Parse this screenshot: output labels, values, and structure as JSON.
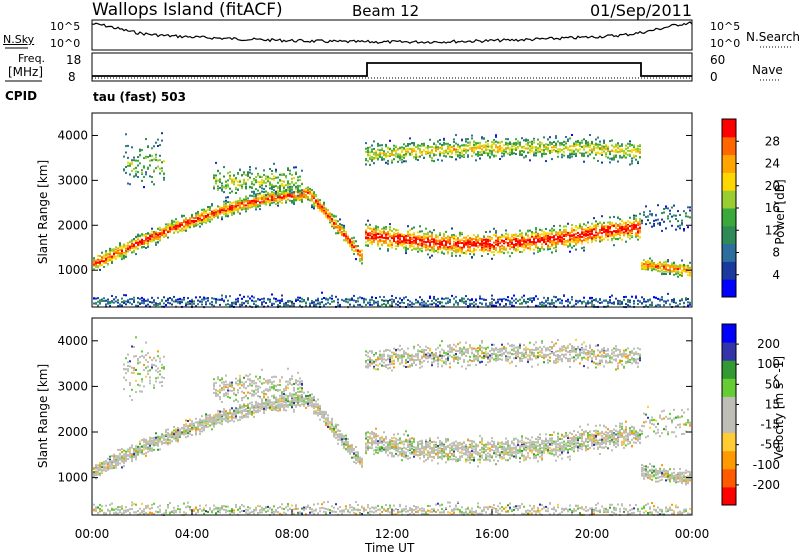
{
  "header": {
    "station": "Wallops Island (fitACF)",
    "beam": "Beam 12",
    "date": "01/Sep/2011"
  },
  "panels": {
    "nsky": {
      "label": "N.Sky",
      "ytop": "10^5",
      "ybot": "10^0",
      "right_top": "10^5",
      "right_bot": "10^0",
      "right_label": "N.Search"
    },
    "freq": {
      "label_line1": "Freq.",
      "label_line2": "[MHz]",
      "ytop": "18",
      "ybot": "8",
      "right_top": "60",
      "right_bot": "0",
      "right_label": "Nave"
    },
    "cpid": {
      "label": "CPID",
      "mode_text": "tau (fast) 503"
    }
  },
  "colors": {
    "power_scale": [
      "#0000ff",
      "#1a3aa0",
      "#2e6e9e",
      "#2e8b57",
      "#3aa83a",
      "#9acd32",
      "#ffd700",
      "#ffa500",
      "#ff6600",
      "#ff0000"
    ],
    "velocity_scale": [
      "#ff0000",
      "#ff5a00",
      "#ff9900",
      "#ffcc33",
      "#bebeb6",
      "#bebeb6",
      "#66cc33",
      "#339933",
      "#3333aa",
      "#0000ff"
    ]
  },
  "chart_data": [
    {
      "type": "heatmap",
      "title": "Power",
      "xlabel": "",
      "ylabel": "Slant Range [km]",
      "x_ticks": [
        "00:00",
        "04:00",
        "08:00",
        "12:00",
        "16:00",
        "20:00",
        "00:00"
      ],
      "y_ticks": [
        1000,
        2000,
        3000,
        4000
      ],
      "ylim": [
        180,
        4500
      ],
      "colorbar": {
        "label": "Power [dB]",
        "ticks": [
          4,
          8,
          12,
          16,
          20,
          24,
          28
        ]
      }
    },
    {
      "type": "heatmap",
      "title": "Velocity",
      "xlabel": "Time UT",
      "ylabel": "Slant Range [km]",
      "x_ticks": [
        "00:00",
        "04:00",
        "08:00",
        "12:00",
        "16:00",
        "20:00",
        "00:00"
      ],
      "y_ticks": [
        1000,
        2000,
        3000,
        4000
      ],
      "ylim": [
        180,
        4500
      ],
      "colorbar": {
        "label": "Velocity [m s^-1]",
        "ticks": [
          200,
          100,
          50,
          15,
          -15,
          -50,
          -100,
          -200
        ]
      }
    }
  ],
  "axis": {
    "xlabel": "Time UT"
  }
}
